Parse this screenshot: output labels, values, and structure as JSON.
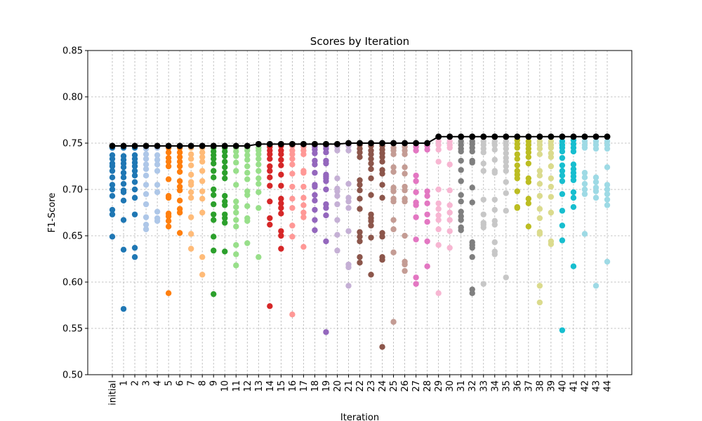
{
  "chart_data": {
    "type": "scatter",
    "title": "Scores by Iteration",
    "xlabel": "Iteration",
    "ylabel": "F1-Score",
    "ylim": [
      0.5,
      0.85
    ],
    "yticks": [
      "0.50",
      "0.55",
      "0.60",
      "0.65",
      "0.70",
      "0.75",
      "0.80",
      "0.85"
    ],
    "grid": true,
    "categories": [
      "initial",
      "1",
      "2",
      "3",
      "4",
      "5",
      "6",
      "7",
      "8",
      "9",
      "10",
      "11",
      "12",
      "13",
      "14",
      "15",
      "16",
      "17",
      "18",
      "19",
      "20",
      "21",
      "22",
      "23",
      "24",
      "25",
      "26",
      "27",
      "28",
      "29",
      "30",
      "31",
      "32",
      "33",
      "34",
      "35",
      "36",
      "37",
      "38",
      "39",
      "40",
      "41",
      "42",
      "43",
      "44"
    ],
    "colors": [
      "#1f77b4",
      "#aec7e8",
      "#ff7f0e",
      "#ffbb78",
      "#2ca02c",
      "#98df8a",
      "#d62728",
      "#ff9896",
      "#9467bd",
      "#c5b0d5",
      "#8c564b",
      "#c49c94",
      "#e377c2",
      "#f7b6d2",
      "#7f7f7f",
      "#c7c7c7",
      "#bcbd22",
      "#dbdb8d",
      "#17becf",
      "#9edae5"
    ],
    "best_line": {
      "color": "#000000",
      "values": [
        0.747,
        0.747,
        0.747,
        0.747,
        0.747,
        0.747,
        0.747,
        0.747,
        0.747,
        0.747,
        0.747,
        0.747,
        0.747,
        0.749,
        0.749,
        0.749,
        0.749,
        0.749,
        0.749,
        0.749,
        0.749,
        0.75,
        0.75,
        0.75,
        0.75,
        0.75,
        0.75,
        0.75,
        0.75,
        0.757,
        0.757,
        0.757,
        0.757,
        0.757,
        0.757,
        0.757,
        0.757,
        0.757,
        0.757,
        0.757,
        0.757,
        0.757,
        0.757,
        0.757,
        0.757
      ]
    },
    "points": [
      {
        "x": "initial",
        "c": 0,
        "y": [
          0.747,
          0.745,
          0.737,
          0.733,
          0.728,
          0.725,
          0.72,
          0.713,
          0.705,
          0.7,
          0.693,
          0.678,
          0.673,
          0.649
        ]
      },
      {
        "x": "1",
        "c": 0,
        "y": [
          0.747,
          0.745,
          0.736,
          0.732,
          0.728,
          0.724,
          0.718,
          0.713,
          0.706,
          0.699,
          0.697,
          0.688,
          0.667,
          0.635,
          0.571
        ]
      },
      {
        "x": "2",
        "c": 0,
        "y": [
          0.747,
          0.745,
          0.737,
          0.733,
          0.729,
          0.725,
          0.72,
          0.715,
          0.708,
          0.7,
          0.691,
          0.673,
          0.637,
          0.627
        ]
      },
      {
        "x": "3",
        "c": 1,
        "y": [
          0.747,
          0.744,
          0.738,
          0.733,
          0.727,
          0.722,
          0.715,
          0.705,
          0.695,
          0.684,
          0.67,
          0.662,
          0.657
        ]
      },
      {
        "x": "4",
        "c": 1,
        "y": [
          0.747,
          0.745,
          0.737,
          0.732,
          0.727,
          0.72,
          0.705,
          0.697,
          0.676,
          0.669,
          0.666
        ]
      },
      {
        "x": "5",
        "c": 2,
        "y": [
          0.747,
          0.745,
          0.74,
          0.734,
          0.73,
          0.725,
          0.711,
          0.693,
          0.691,
          0.674,
          0.671,
          0.666,
          0.66,
          0.588
        ]
      },
      {
        "x": "6",
        "c": 2,
        "y": [
          0.747,
          0.745,
          0.74,
          0.735,
          0.73,
          0.725,
          0.719,
          0.709,
          0.703,
          0.699,
          0.688,
          0.679,
          0.675,
          0.653
        ]
      },
      {
        "x": "7",
        "c": 3,
        "y": [
          0.747,
          0.745,
          0.738,
          0.733,
          0.726,
          0.716,
          0.708,
          0.705,
          0.697,
          0.691,
          0.67,
          0.652,
          0.636
        ]
      },
      {
        "x": "8",
        "c": 3,
        "y": [
          0.747,
          0.745,
          0.74,
          0.735,
          0.73,
          0.72,
          0.709,
          0.698,
          0.69,
          0.675,
          0.627,
          0.608
        ]
      },
      {
        "x": "9",
        "c": 4,
        "y": [
          0.747,
          0.745,
          0.741,
          0.737,
          0.733,
          0.728,
          0.72,
          0.713,
          0.7,
          0.694,
          0.684,
          0.673,
          0.667,
          0.649,
          0.634,
          0.587
        ]
      },
      {
        "x": "10",
        "c": 4,
        "y": [
          0.747,
          0.745,
          0.741,
          0.736,
          0.73,
          0.724,
          0.718,
          0.712,
          0.693,
          0.687,
          0.683,
          0.673,
          0.669,
          0.664,
          0.633
        ]
      },
      {
        "x": "11",
        "c": 5,
        "y": [
          0.747,
          0.745,
          0.741,
          0.736,
          0.729,
          0.72,
          0.705,
          0.687,
          0.681,
          0.675,
          0.667,
          0.66,
          0.64,
          0.63,
          0.618
        ]
      },
      {
        "x": "12",
        "c": 5,
        "y": [
          0.747,
          0.745,
          0.742,
          0.737,
          0.732,
          0.725,
          0.718,
          0.711,
          0.698,
          0.694,
          0.682,
          0.669,
          0.666,
          0.642
        ]
      },
      {
        "x": "13",
        "c": 5,
        "y": [
          0.749,
          0.745,
          0.742,
          0.738,
          0.733,
          0.727,
          0.72,
          0.712,
          0.706,
          0.697,
          0.68,
          0.627
        ]
      },
      {
        "x": "14",
        "c": 6,
        "y": [
          0.749,
          0.746,
          0.742,
          0.738,
          0.733,
          0.725,
          0.72,
          0.713,
          0.704,
          0.687,
          0.669,
          0.662,
          0.574
        ]
      },
      {
        "x": "15",
        "c": 6,
        "y": [
          0.749,
          0.747,
          0.742,
          0.738,
          0.732,
          0.726,
          0.716,
          0.704,
          0.69,
          0.685,
          0.68,
          0.674,
          0.655,
          0.65,
          0.636
        ]
      },
      {
        "x": "16",
        "c": 7,
        "y": [
          0.749,
          0.747,
          0.742,
          0.738,
          0.733,
          0.727,
          0.717,
          0.703,
          0.69,
          0.68,
          0.661,
          0.649,
          0.565
        ]
      },
      {
        "x": "17",
        "c": 7,
        "y": [
          0.749,
          0.746,
          0.742,
          0.738,
          0.72,
          0.718,
          0.703,
          0.691,
          0.683,
          0.675,
          0.67,
          0.638
        ]
      },
      {
        "x": "18",
        "c": 8,
        "y": [
          0.749,
          0.746,
          0.743,
          0.739,
          0.731,
          0.727,
          0.718,
          0.705,
          0.703,
          0.694,
          0.688,
          0.678,
          0.667,
          0.656
        ]
      },
      {
        "x": "19",
        "c": 8,
        "y": [
          0.749,
          0.747,
          0.744,
          0.74,
          0.731,
          0.728,
          0.716,
          0.714,
          0.712,
          0.709,
          0.7,
          0.684,
          0.68,
          0.672,
          0.644,
          0.546
        ]
      },
      {
        "x": "20",
        "c": 9,
        "y": [
          0.749,
          0.746,
          0.742,
          0.712,
          0.701,
          0.698,
          0.693,
          0.684,
          0.667,
          0.651,
          0.634
        ]
      },
      {
        "x": "21",
        "c": 9,
        "y": [
          0.75,
          0.747,
          0.742,
          0.706,
          0.691,
          0.687,
          0.68,
          0.655,
          0.619,
          0.616,
          0.596
        ]
      },
      {
        "x": "22",
        "c": 10,
        "y": [
          0.75,
          0.748,
          0.744,
          0.74,
          0.735,
          0.71,
          0.705,
          0.699,
          0.69,
          0.679,
          0.654,
          0.649,
          0.644,
          0.627,
          0.621
        ]
      },
      {
        "x": "23",
        "c": 10,
        "y": [
          0.75,
          0.747,
          0.742,
          0.738,
          0.733,
          0.728,
          0.722,
          0.712,
          0.694,
          0.673,
          0.669,
          0.666,
          0.661,
          0.648,
          0.608
        ]
      },
      {
        "x": "24",
        "c": 10,
        "y": [
          0.75,
          0.747,
          0.743,
          0.739,
          0.735,
          0.73,
          0.721,
          0.717,
          0.705,
          0.691,
          0.653,
          0.649,
          0.627,
          0.624,
          0.53
        ]
      },
      {
        "x": "25",
        "c": 11,
        "y": [
          0.75,
          0.745,
          0.742,
          0.738,
          0.724,
          0.719,
          0.702,
          0.698,
          0.69,
          0.687,
          0.667,
          0.657,
          0.632,
          0.557
        ]
      },
      {
        "x": "26",
        "c": 11,
        "y": [
          0.75,
          0.746,
          0.742,
          0.738,
          0.724,
          0.717,
          0.703,
          0.699,
          0.69,
          0.687,
          0.65,
          0.622,
          0.619,
          0.612
        ]
      },
      {
        "x": "27",
        "c": 12,
        "y": [
          0.75,
          0.746,
          0.742,
          0.715,
          0.709,
          0.697,
          0.686,
          0.683,
          0.67,
          0.646,
          0.605,
          0.598
        ]
      },
      {
        "x": "28",
        "c": 12,
        "y": [
          0.75,
          0.747,
          0.743,
          0.698,
          0.693,
          0.685,
          0.673,
          0.665,
          0.644,
          0.617
        ]
      },
      {
        "x": "29",
        "c": 13,
        "y": [
          0.757,
          0.752,
          0.748,
          0.743,
          0.73,
          0.7,
          0.685,
          0.679,
          0.672,
          0.667,
          0.657,
          0.64,
          0.588
        ]
      },
      {
        "x": "30",
        "c": 13,
        "y": [
          0.757,
          0.752,
          0.748,
          0.745,
          0.727,
          0.699,
          0.683,
          0.675,
          0.667,
          0.655,
          0.637
        ]
      },
      {
        "x": "31",
        "c": 14,
        "y": [
          0.757,
          0.752,
          0.748,
          0.744,
          0.741,
          0.731,
          0.721,
          0.709,
          0.694,
          0.687,
          0.676,
          0.671,
          0.667,
          0.659,
          0.656
        ]
      },
      {
        "x": "32",
        "c": 14,
        "y": [
          0.757,
          0.752,
          0.749,
          0.745,
          0.741,
          0.731,
          0.729,
          0.702,
          0.686,
          0.643,
          0.64,
          0.637,
          0.627,
          0.592,
          0.588
        ]
      },
      {
        "x": "33",
        "c": 15,
        "y": [
          0.757,
          0.752,
          0.748,
          0.744,
          0.74,
          0.728,
          0.72,
          0.689,
          0.673,
          0.664,
          0.662,
          0.659,
          0.598
        ]
      },
      {
        "x": "34",
        "c": 15,
        "y": [
          0.757,
          0.752,
          0.748,
          0.743,
          0.732,
          0.72,
          0.718,
          0.689,
          0.678,
          0.666,
          0.662,
          0.643,
          0.633,
          0.63
        ]
      },
      {
        "x": "35",
        "c": 15,
        "y": [
          0.757,
          0.752,
          0.748,
          0.744,
          0.739,
          0.734,
          0.73,
          0.725,
          0.72,
          0.708,
          0.696,
          0.677,
          0.605
        ]
      },
      {
        "x": "36",
        "c": 16,
        "y": [
          0.757,
          0.753,
          0.749,
          0.745,
          0.738,
          0.733,
          0.726,
          0.72,
          0.716,
          0.712,
          0.698,
          0.681,
          0.68
        ]
      },
      {
        "x": "37",
        "c": 16,
        "y": [
          0.757,
          0.752,
          0.748,
          0.744,
          0.74,
          0.735,
          0.728,
          0.712,
          0.708,
          0.69,
          0.685,
          0.66
        ]
      },
      {
        "x": "38",
        "c": 17,
        "y": [
          0.757,
          0.752,
          0.748,
          0.744,
          0.738,
          0.72,
          0.715,
          0.706,
          0.693,
          0.679,
          0.669,
          0.654,
          0.652,
          0.596,
          0.578
        ]
      },
      {
        "x": "39",
        "c": 17,
        "y": [
          0.757,
          0.752,
          0.748,
          0.745,
          0.739,
          0.735,
          0.725,
          0.712,
          0.703,
          0.692,
          0.675,
          0.644,
          0.641
        ]
      },
      {
        "x": "40",
        "c": 18,
        "y": [
          0.757,
          0.752,
          0.748,
          0.745,
          0.741,
          0.734,
          0.726,
          0.72,
          0.715,
          0.709,
          0.695,
          0.677,
          0.661,
          0.645,
          0.548
        ]
      },
      {
        "x": "41",
        "c": 18,
        "y": [
          0.757,
          0.753,
          0.749,
          0.745,
          0.741,
          0.727,
          0.722,
          0.718,
          0.714,
          0.71,
          0.697,
          0.691,
          0.681,
          0.617
        ]
      },
      {
        "x": "42",
        "c": 19,
        "y": [
          0.757,
          0.752,
          0.748,
          0.745,
          0.718,
          0.713,
          0.706,
          0.7,
          0.695,
          0.652
        ]
      },
      {
        "x": "43",
        "c": 19,
        "y": [
          0.757,
          0.752,
          0.748,
          0.744,
          0.713,
          0.708,
          0.702,
          0.698,
          0.691,
          0.596
        ]
      },
      {
        "x": "44",
        "c": 19,
        "y": [
          0.757,
          0.752,
          0.748,
          0.744,
          0.724,
          0.705,
          0.7,
          0.695,
          0.689,
          0.683,
          0.622
        ]
      }
    ]
  }
}
